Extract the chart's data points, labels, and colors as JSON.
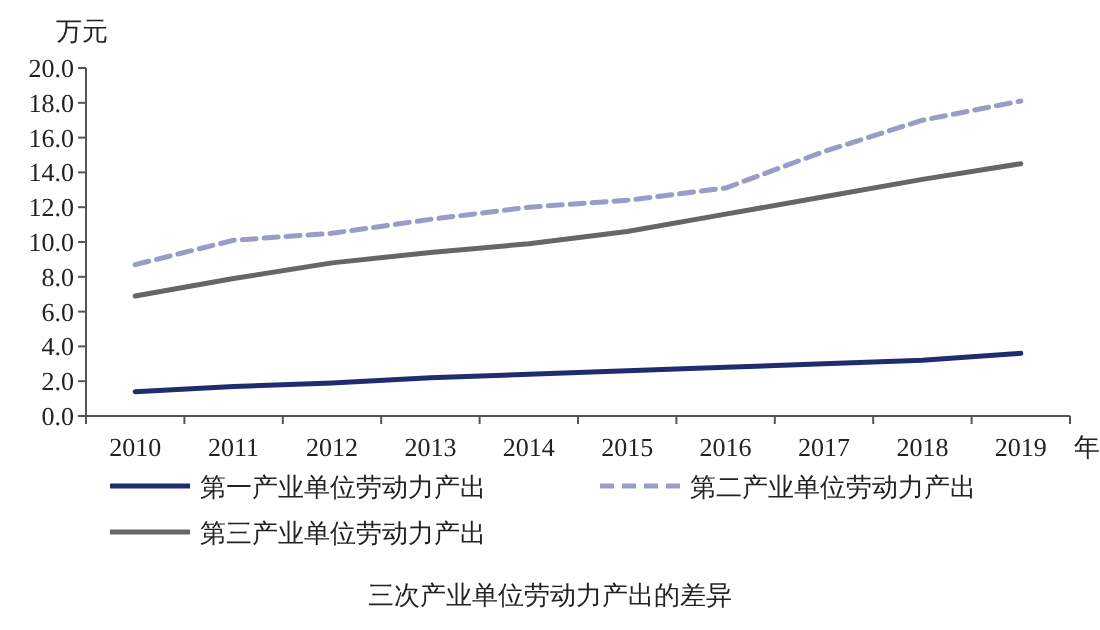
{
  "chart_data": {
    "type": "line",
    "title": "三次产业单位劳动力产出的差异",
    "ylabel": "万元",
    "xlabel": "年",
    "categories": [
      "2010",
      "2011",
      "2012",
      "2013",
      "2014",
      "2015",
      "2016",
      "2017",
      "2018",
      "2019"
    ],
    "series": [
      {
        "name": "第一产业单位劳动力产出",
        "color": "#1f2d6e",
        "line_style": "solid",
        "values": [
          1.4,
          1.7,
          1.9,
          2.2,
          2.4,
          2.6,
          2.8,
          3.0,
          3.2,
          3.6
        ]
      },
      {
        "name": "第二产业单位劳动力产出",
        "color": "#9a9cc8",
        "line_style": "dashed",
        "values": [
          8.7,
          10.1,
          10.5,
          11.3,
          12.0,
          12.4,
          13.1,
          15.2,
          17.0,
          18.1
        ]
      },
      {
        "name": "第三产业单位劳动力产出",
        "color": "#666666",
        "line_style": "solid",
        "values": [
          6.9,
          7.9,
          8.8,
          9.4,
          9.9,
          10.6,
          11.6,
          12.6,
          13.6,
          14.5
        ]
      }
    ],
    "ylim": [
      0,
      20
    ],
    "yticks": [
      {
        "value": 0,
        "label": "0.0"
      },
      {
        "value": 2,
        "label": "2.0"
      },
      {
        "value": 4,
        "label": "4.0"
      },
      {
        "value": 6,
        "label": "6.0"
      },
      {
        "value": 8,
        "label": "8.0"
      },
      {
        "value": 10,
        "label": "10.0"
      },
      {
        "value": 12,
        "label": "12.0"
      },
      {
        "value": 14,
        "label": "14.0"
      },
      {
        "value": 16,
        "label": "16.0"
      },
      {
        "value": 18,
        "label": "18.0"
      },
      {
        "value": 20,
        "label": "20.0"
      }
    ],
    "grid": false,
    "legend": "bottom",
    "marker": "none"
  }
}
